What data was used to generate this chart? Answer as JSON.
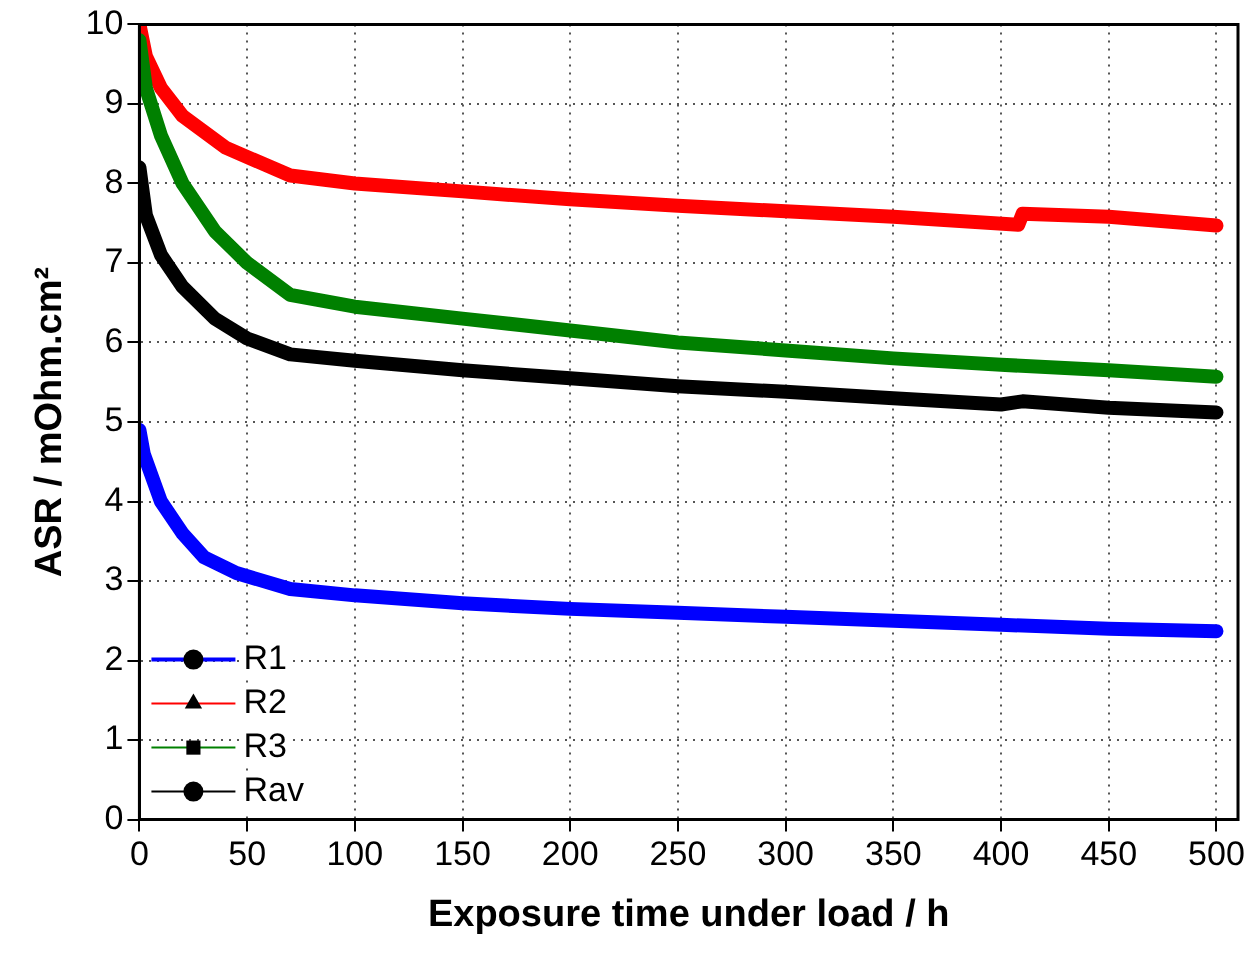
{
  "chart_data": {
    "type": "line",
    "xlabel": "Exposure time under load / h",
    "ylabel": "ASR / mOhm.cm²",
    "xlim": [
      0,
      510
    ],
    "xticks": [
      0,
      50,
      100,
      150,
      200,
      250,
      300,
      350,
      400,
      450,
      500
    ],
    "ylim": [
      0,
      10
    ],
    "yticks": [
      0,
      1,
      2,
      3,
      4,
      5,
      6,
      7,
      8,
      9,
      10
    ],
    "grid": true,
    "legend": "bottom left",
    "line_style": "solid",
    "series": [
      {
        "name": "R1",
        "color": "#0000ff",
        "marker": "circle",
        "x": [
          0,
          2,
          10,
          20,
          30,
          45,
          70,
          100,
          150,
          200,
          250,
          300,
          350,
          400,
          450,
          500
        ],
        "values": [
          4.9,
          4.6,
          4.0,
          3.6,
          3.3,
          3.1,
          2.9,
          2.82,
          2.72,
          2.65,
          2.6,
          2.55,
          2.5,
          2.45,
          2.4,
          2.37
        ]
      },
      {
        "name": "R2",
        "color": "#ff0000",
        "marker": "triangle",
        "x": [
          0,
          3,
          10,
          20,
          40,
          70,
          100,
          150,
          200,
          250,
          300,
          350,
          408,
          410,
          450,
          500
        ],
        "values": [
          10.0,
          9.6,
          9.2,
          8.85,
          8.45,
          8.1,
          8.0,
          7.9,
          7.8,
          7.72,
          7.65,
          7.58,
          7.48,
          7.62,
          7.58,
          7.47
        ]
      },
      {
        "name": "R3",
        "color": "#008000",
        "marker": "square",
        "x": [
          0,
          3,
          10,
          20,
          35,
          50,
          70,
          100,
          150,
          200,
          250,
          300,
          350,
          400,
          450,
          500
        ],
        "values": [
          9.8,
          9.2,
          8.6,
          8.0,
          7.4,
          7.0,
          6.6,
          6.45,
          6.3,
          6.15,
          6.0,
          5.9,
          5.8,
          5.72,
          5.65,
          5.57
        ]
      },
      {
        "name": "Rav",
        "color": "#000000",
        "marker": "circle",
        "x": [
          0,
          3,
          10,
          20,
          35,
          50,
          70,
          100,
          150,
          200,
          250,
          300,
          350,
          400,
          410,
          450,
          500
        ],
        "values": [
          8.2,
          7.6,
          7.1,
          6.7,
          6.3,
          6.05,
          5.85,
          5.77,
          5.65,
          5.55,
          5.45,
          5.38,
          5.3,
          5.22,
          5.26,
          5.18,
          5.12
        ]
      }
    ]
  }
}
